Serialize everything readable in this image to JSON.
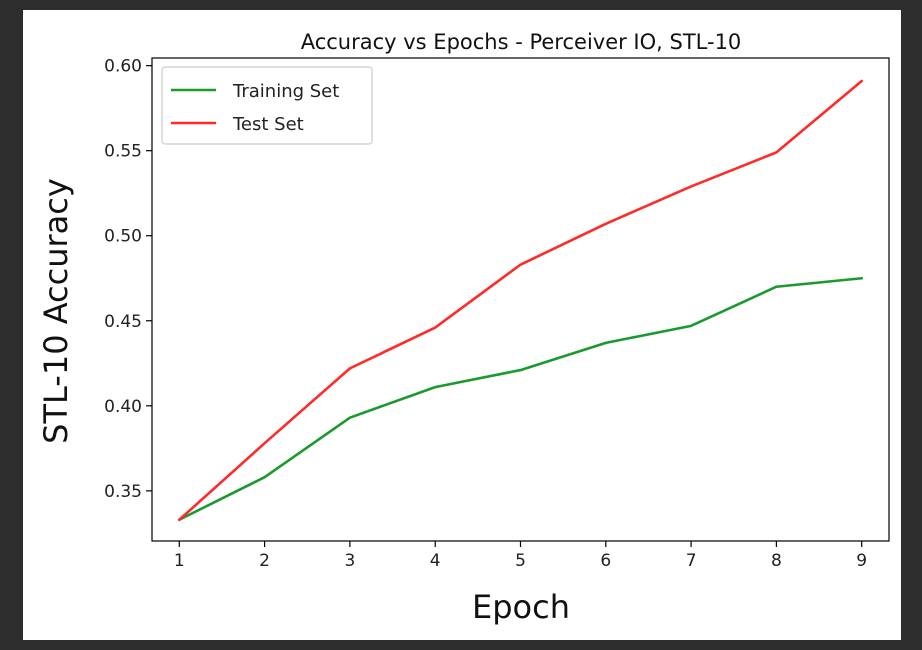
{
  "chart_data": {
    "type": "line",
    "title": "Accuracy vs Epochs - Perceiver IO, STL-10",
    "xlabel": "Epoch",
    "ylabel": "STL-10 Accuracy",
    "x": [
      1,
      2,
      3,
      4,
      5,
      6,
      7,
      8,
      9
    ],
    "xticks": [
      "1",
      "2",
      "3",
      "4",
      "5",
      "6",
      "7",
      "8",
      "9"
    ],
    "yticks": [
      "0.35",
      "0.40",
      "0.45",
      "0.50",
      "0.55",
      "0.60"
    ],
    "xlim": [
      0.68,
      9.32
    ],
    "ylim": [
      0.3205,
      0.6045
    ],
    "grid": false,
    "legend_position": "top-left",
    "series": [
      {
        "name": "Training Set",
        "color": "#1a9a2e",
        "values": [
          0.333,
          0.358,
          0.393,
          0.411,
          0.421,
          0.437,
          0.447,
          0.47,
          0.475
        ]
      },
      {
        "name": "Test Set",
        "color": "#ff2a2a",
        "values": [
          0.333,
          0.378,
          0.422,
          0.446,
          0.483,
          0.507,
          0.529,
          0.549,
          0.591
        ]
      }
    ]
  }
}
